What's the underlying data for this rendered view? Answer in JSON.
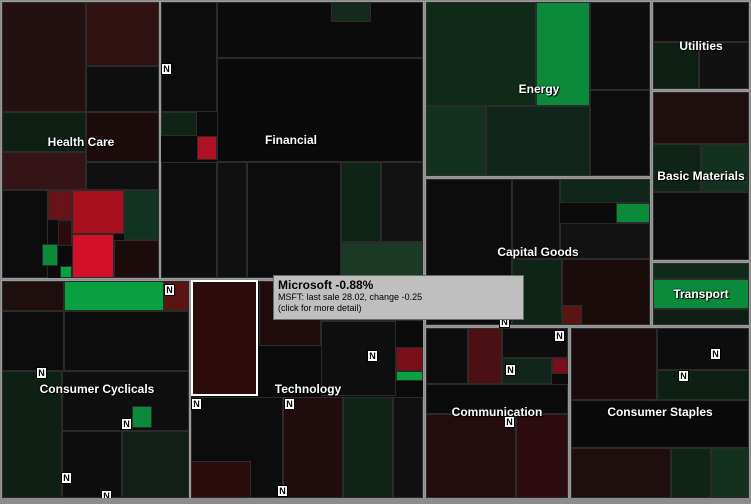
{
  "sectors": [
    {
      "id": "health-care",
      "label": "Health Care"
    },
    {
      "id": "financial",
      "label": "Financial"
    },
    {
      "id": "energy",
      "label": "Energy"
    },
    {
      "id": "utilities",
      "label": "Utilities"
    },
    {
      "id": "basic-materials",
      "label": "Basic Materials"
    },
    {
      "id": "capital-goods",
      "label": "Capital Goods"
    },
    {
      "id": "transport",
      "label": "Transport"
    },
    {
      "id": "consumer-cyclicals",
      "label": "Consumer Cyclicals"
    },
    {
      "id": "technology",
      "label": "Technology"
    },
    {
      "id": "communication",
      "label": "Communication"
    },
    {
      "id": "consumer-staples",
      "label": "Consumer Staples"
    }
  ],
  "tooltip": {
    "title": "Microsoft -0.88%",
    "line1": "MSFT: last sale 28.02, change -0.25",
    "line2": "(click for more detail)"
  },
  "news_icon_glyph": "N",
  "colors": {
    "strong_red": "#d2102a",
    "red": "#5a1414",
    "dark_red": "#2a0c0c",
    "neutral": "#0e0e0e",
    "dark_green": "#0f2a18",
    "green": "#1d6a36",
    "strong_green": "#0aa040"
  }
}
